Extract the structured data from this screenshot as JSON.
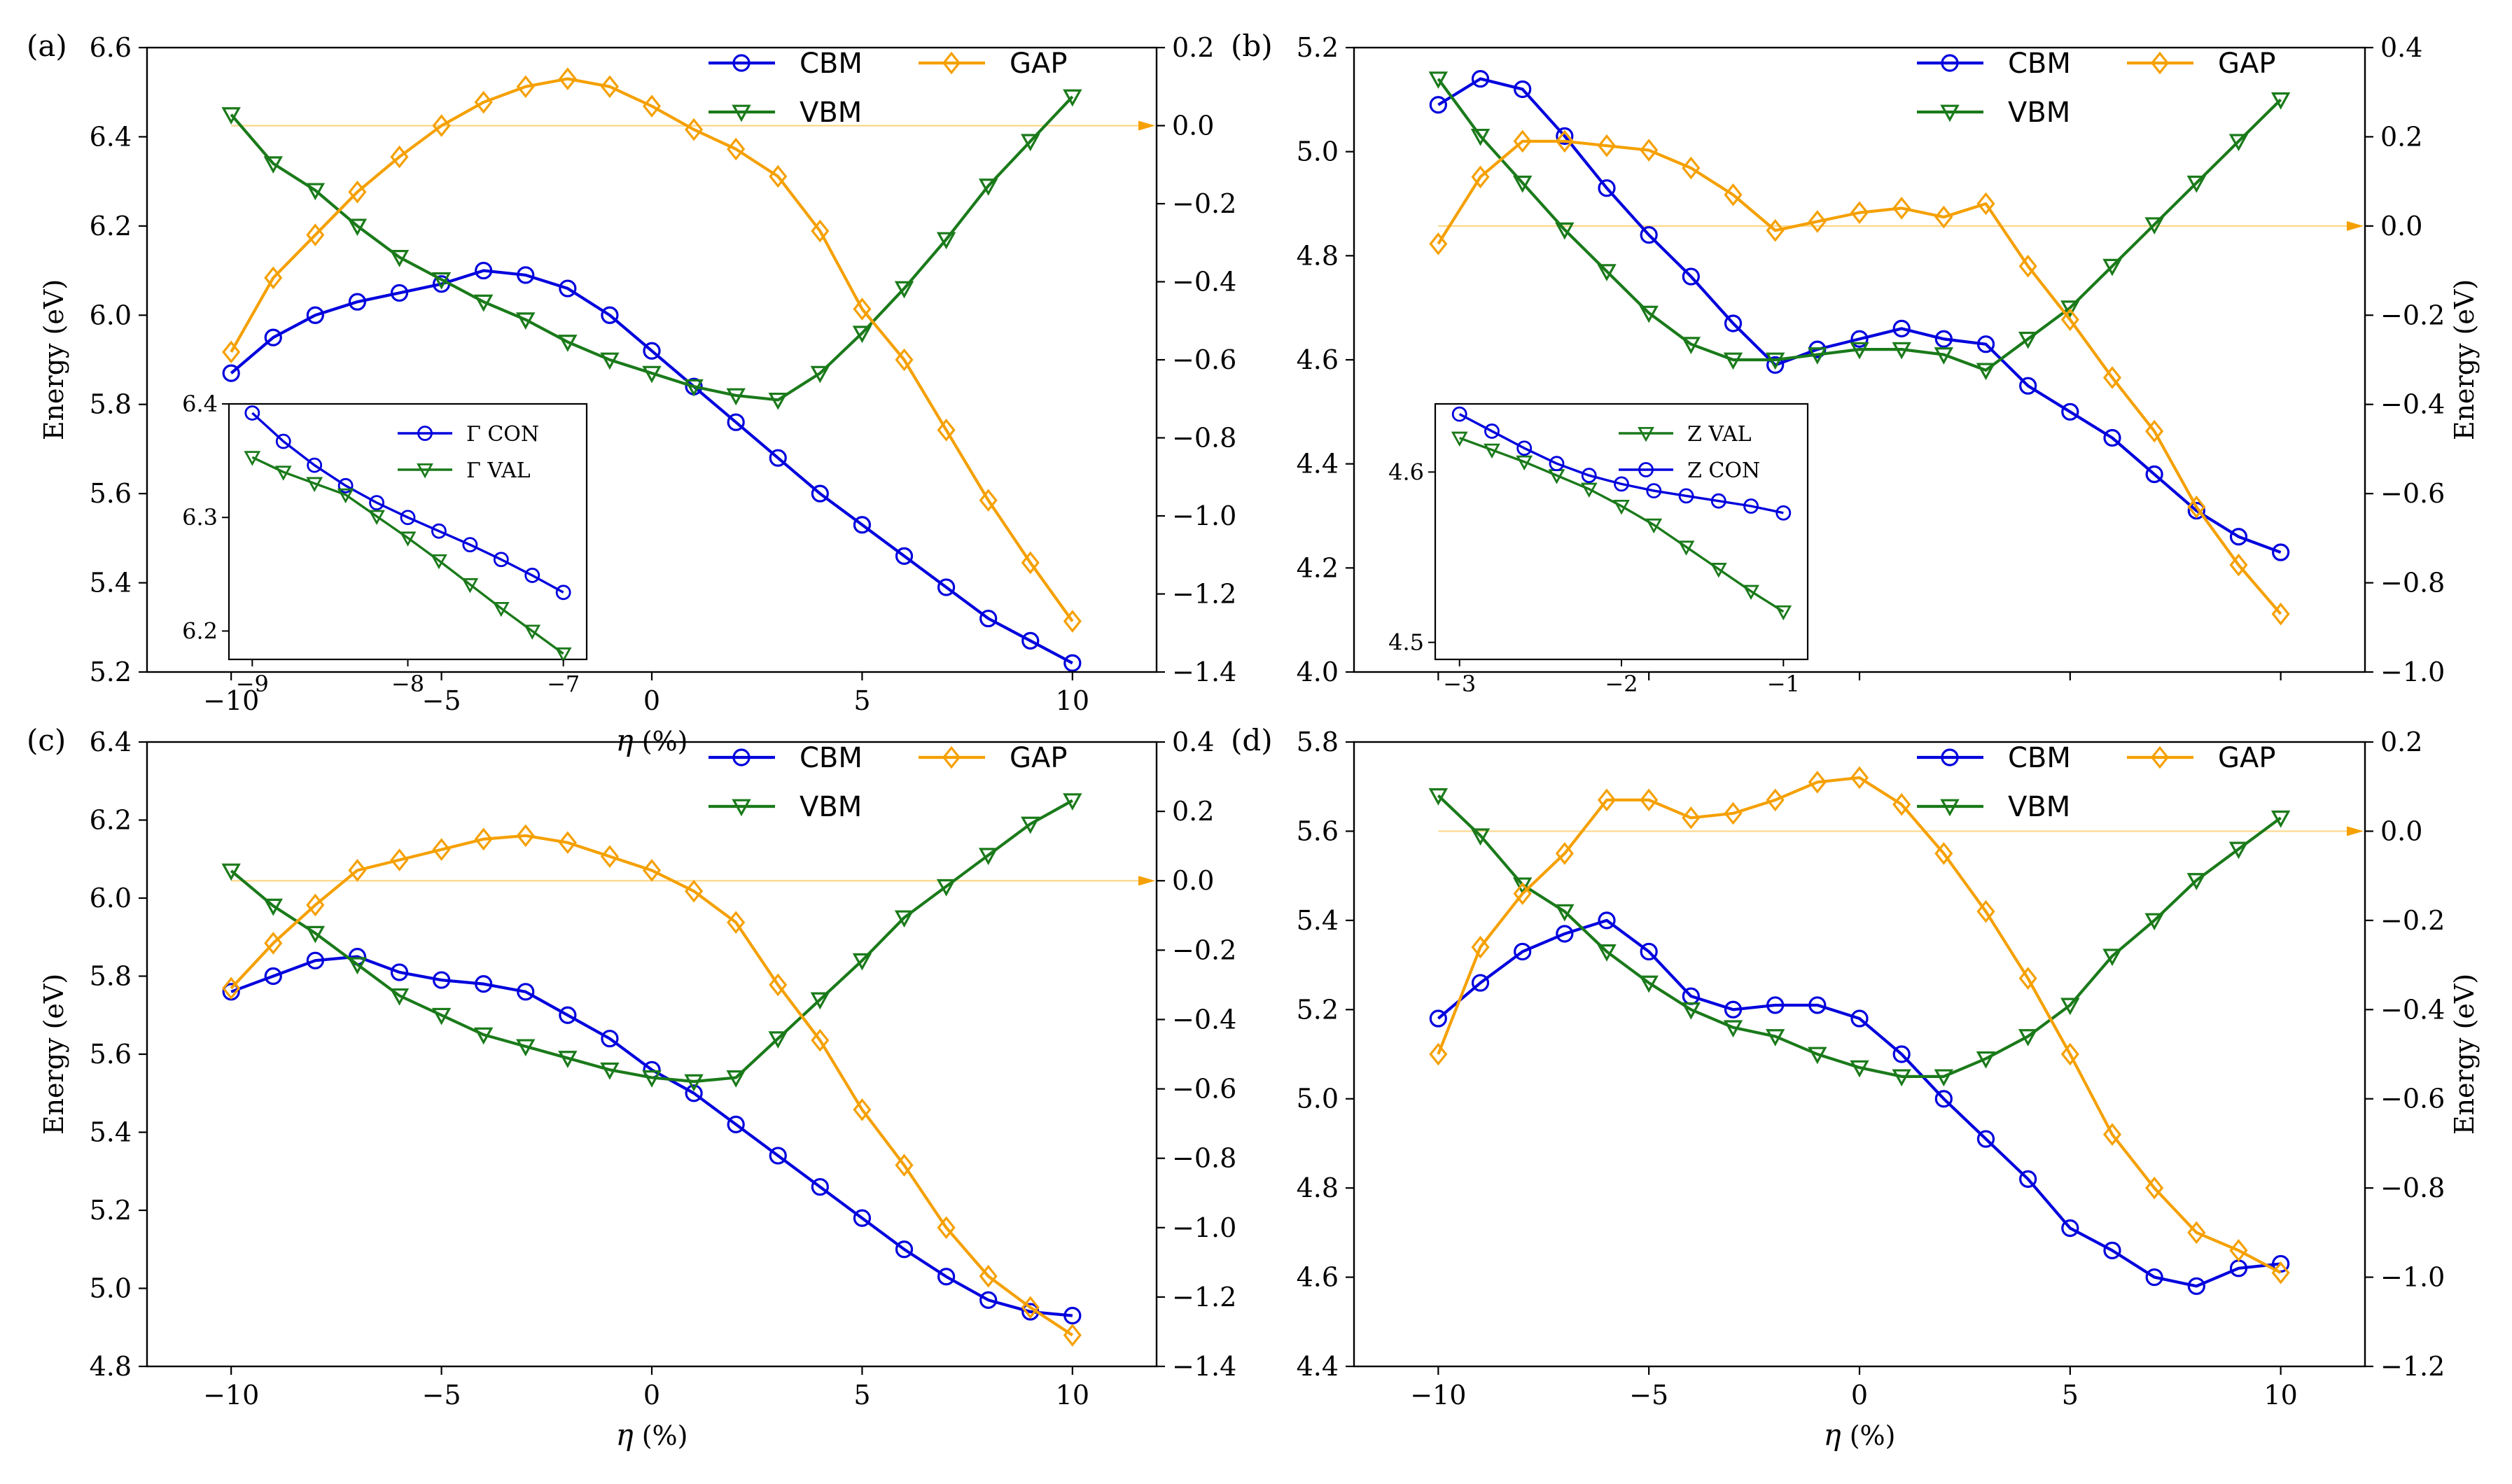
{
  "chart_data": [
    {
      "type": "line",
      "panel_label": "(a)",
      "xlabel_var": "η",
      "xlabel_unit": "(%)",
      "ylabel_left": "Energy (eV)",
      "ylabel_right": "",
      "xlim": [
        -12,
        12
      ],
      "xticks": [
        -10,
        -5,
        0,
        5,
        10
      ],
      "xtick_labels": [
        "−10",
        "−5",
        "0",
        "5",
        "10"
      ],
      "ylim_left": [
        5.2,
        6.6
      ],
      "yticks_left": [
        5.2,
        5.4,
        5.6,
        5.8,
        6.0,
        6.2,
        6.4,
        6.6
      ],
      "ytick_labels_left": [
        "5.2",
        "5.4",
        "5.6",
        "5.8",
        "6.0",
        "6.2",
        "6.4",
        "6.6"
      ],
      "ylim_right": [
        -1.4,
        0.2
      ],
      "yticks_right": [
        -1.4,
        -1.2,
        -1.0,
        -0.8,
        -0.6,
        -0.4,
        -0.2,
        0.0,
        0.2
      ],
      "ytick_labels_right": [
        "−1.4",
        "−1.2",
        "−1.0",
        "−0.8",
        "−0.6",
        "−0.4",
        "−0.2",
        "0.0",
        "0.2"
      ],
      "zero_line_right": 0.0,
      "x": [
        -10,
        -9,
        -8,
        -7,
        -6,
        -5,
        -4,
        -3,
        -2,
        -1,
        0,
        1,
        2,
        3,
        4,
        5,
        6,
        7,
        8,
        9,
        10
      ],
      "series": [
        {
          "name": "CBM",
          "axis": "left",
          "color": "#0000dd",
          "marker": "circle",
          "values": [
            5.87,
            5.95,
            6.0,
            6.03,
            6.05,
            6.07,
            6.1,
            6.09,
            6.06,
            6.0,
            5.92,
            5.84,
            5.76,
            5.68,
            5.6,
            5.53,
            5.46,
            5.39,
            5.32,
            5.27,
            5.22
          ]
        },
        {
          "name": "VBM",
          "axis": "left",
          "color": "#1a7a1a",
          "marker": "triangle-down",
          "values": [
            6.45,
            6.34,
            6.28,
            6.2,
            6.13,
            6.08,
            6.03,
            5.99,
            5.94,
            5.9,
            5.87,
            5.84,
            5.82,
            5.81,
            5.87,
            5.96,
            6.06,
            6.17,
            6.29,
            6.39,
            6.49
          ]
        },
        {
          "name": "GAP",
          "axis": "right",
          "color": "#f5a000",
          "marker": "diamond",
          "values": [
            -0.58,
            -0.39,
            -0.28,
            -0.17,
            -0.08,
            0.0,
            0.06,
            0.1,
            0.12,
            0.1,
            0.05,
            -0.01,
            -0.06,
            -0.13,
            -0.27,
            -0.47,
            -0.6,
            -0.78,
            -0.96,
            -1.12,
            -1.27
          ]
        }
      ],
      "legend_placement": "top-right",
      "inset": {
        "legend_placement": "upper-right",
        "xlim": [
          -9.15,
          -6.85
        ],
        "ylim": [
          6.175,
          6.4
        ],
        "xticks": [
          -9,
          -8,
          -7
        ],
        "xtick_labels": [
          "−9",
          "−8",
          "−7"
        ],
        "yticks": [
          6.2,
          6.3,
          6.4
        ],
        "ytick_labels": [
          "6.2",
          "6.3",
          "6.4"
        ],
        "x": [
          -9.0,
          -8.8,
          -8.6,
          -8.4,
          -8.2,
          -8.0,
          -7.8,
          -7.6,
          -7.4,
          -7.2,
          -7.0
        ],
        "series": [
          {
            "name": "Γ CON",
            "color": "#0000dd",
            "marker": "circle",
            "values": [
              6.392,
              6.367,
              6.346,
              6.328,
              6.313,
              6.3,
              6.288,
              6.276,
              6.263,
              6.249,
              6.234
            ]
          },
          {
            "name": "Γ VAL",
            "color": "#1a7a1a",
            "marker": "triangle-down",
            "values": [
              6.353,
              6.34,
              6.33,
              6.32,
              6.301,
              6.282,
              6.262,
              6.241,
              6.22,
              6.2,
              6.18
            ]
          }
        ]
      }
    },
    {
      "type": "line",
      "panel_label": "(b)",
      "xlabel_var": "",
      "xlabel_unit": "",
      "ylabel_left": "",
      "ylabel_right": "Energy (eV)",
      "xlim": [
        -12,
        12
      ],
      "xticks": [
        -10,
        -5,
        0,
        5,
        10
      ],
      "xtick_labels": [
        "",
        "",
        "",
        "",
        ""
      ],
      "ylim_left": [
        4.0,
        5.2
      ],
      "yticks_left": [
        4.0,
        4.2,
        4.4,
        4.6,
        4.8,
        5.0,
        5.2
      ],
      "ytick_labels_left": [
        "4.0",
        "4.2",
        "4.4",
        "4.6",
        "4.8",
        "5.0",
        "5.2"
      ],
      "ylim_right": [
        -1.0,
        0.4
      ],
      "yticks_right": [
        -1.0,
        -0.8,
        -0.6,
        -0.4,
        -0.2,
        0.0,
        0.2,
        0.4
      ],
      "ytick_labels_right": [
        "−1.0",
        "−0.8",
        "−0.6",
        "−0.4",
        "−0.2",
        "0.0",
        "0.2",
        "0.4"
      ],
      "zero_line_right": 0.0,
      "x": [
        -10,
        -9,
        -8,
        -7,
        -6,
        -5,
        -4,
        -3,
        -2,
        -1,
        0,
        1,
        2,
        3,
        4,
        5,
        6,
        7,
        8,
        9,
        10
      ],
      "series": [
        {
          "name": "CBM",
          "axis": "left",
          "color": "#0000dd",
          "marker": "circle",
          "values": [
            5.09,
            5.14,
            5.12,
            5.03,
            4.93,
            4.84,
            4.76,
            4.67,
            4.59,
            4.62,
            4.64,
            4.66,
            4.64,
            4.63,
            4.55,
            4.5,
            4.45,
            4.38,
            4.31,
            4.26,
            4.23
          ]
        },
        {
          "name": "VBM",
          "axis": "left",
          "color": "#1a7a1a",
          "marker": "triangle-down",
          "values": [
            5.14,
            5.03,
            4.94,
            4.85,
            4.77,
            4.69,
            4.63,
            4.6,
            4.6,
            4.61,
            4.62,
            4.62,
            4.61,
            4.58,
            4.64,
            4.7,
            4.78,
            4.86,
            4.94,
            5.02,
            5.1
          ]
        },
        {
          "name": "GAP",
          "axis": "right",
          "color": "#f5a000",
          "marker": "diamond",
          "values": [
            -0.04,
            0.11,
            0.19,
            0.19,
            0.18,
            0.17,
            0.13,
            0.07,
            -0.01,
            0.01,
            0.03,
            0.04,
            0.02,
            0.05,
            -0.09,
            -0.21,
            -0.34,
            -0.46,
            -0.63,
            -0.76,
            -0.87
          ]
        }
      ],
      "legend_placement": "top-right",
      "inset": {
        "legend_placement": "upper-right",
        "xlim": [
          -3.15,
          -0.85
        ],
        "ylim": [
          4.49,
          4.64
        ],
        "xticks": [
          -3,
          -2,
          -1
        ],
        "xtick_labels": [
          "−3",
          "−2",
          "−1"
        ],
        "yticks": [
          4.5,
          4.6
        ],
        "ytick_labels": [
          "4.5",
          "4.6"
        ],
        "x": [
          -3.0,
          -2.8,
          -2.6,
          -2.4,
          -2.2,
          -2.0,
          -1.8,
          -1.6,
          -1.4,
          -1.2,
          -1.0
        ],
        "series": [
          {
            "name": "Z VAL",
            "color": "#1a7a1a",
            "marker": "triangle-down",
            "values": [
              4.62,
              4.613,
              4.606,
              4.598,
              4.59,
              4.58,
              4.569,
              4.556,
              4.543,
              4.53,
              4.518
            ]
          },
          {
            "name": "Z CON",
            "color": "#0000dd",
            "marker": "circle",
            "values": [
              4.634,
              4.624,
              4.614,
              4.605,
              4.598,
              4.593,
              4.589,
              4.586,
              4.583,
              4.58,
              4.576
            ]
          }
        ]
      }
    },
    {
      "type": "line",
      "panel_label": "(c)",
      "xlabel_var": "η",
      "xlabel_unit": "(%)",
      "ylabel_left": "Energy (eV)",
      "ylabel_right": "",
      "xlim": [
        -12,
        12
      ],
      "xticks": [
        -10,
        -5,
        0,
        5,
        10
      ],
      "xtick_labels": [
        "−10",
        "−5",
        "0",
        "5",
        "10"
      ],
      "ylim_left": [
        4.8,
        6.4
      ],
      "yticks_left": [
        4.8,
        5.0,
        5.2,
        5.4,
        5.6,
        5.8,
        6.0,
        6.2,
        6.4
      ],
      "ytick_labels_left": [
        "4.8",
        "5.0",
        "5.2",
        "5.4",
        "5.6",
        "5.8",
        "6.0",
        "6.2",
        "6.4"
      ],
      "ylim_right": [
        -1.4,
        0.4
      ],
      "yticks_right": [
        -1.4,
        -1.2,
        -1.0,
        -0.8,
        -0.6,
        -0.4,
        -0.2,
        0.0,
        0.2,
        0.4
      ],
      "ytick_labels_right": [
        "−1.4",
        "−1.2",
        "−1.0",
        "−0.8",
        "−0.6",
        "−0.4",
        "−0.2",
        "0.0",
        "0.2",
        "0.4"
      ],
      "zero_line_right": 0.0,
      "x": [
        -10,
        -9,
        -8,
        -7,
        -6,
        -5,
        -4,
        -3,
        -2,
        -1,
        0,
        1,
        2,
        3,
        4,
        5,
        6,
        7,
        8,
        9,
        10
      ],
      "series": [
        {
          "name": "CBM",
          "axis": "left",
          "color": "#0000dd",
          "marker": "circle",
          "values": [
            5.76,
            5.8,
            5.84,
            5.85,
            5.81,
            5.79,
            5.78,
            5.76,
            5.7,
            5.64,
            5.56,
            5.5,
            5.42,
            5.34,
            5.26,
            5.18,
            5.1,
            5.03,
            4.97,
            4.94,
            4.93
          ]
        },
        {
          "name": "VBM",
          "axis": "left",
          "color": "#1a7a1a",
          "marker": "triangle-down",
          "values": [
            6.07,
            5.98,
            5.91,
            5.83,
            5.75,
            5.7,
            5.65,
            5.62,
            5.59,
            5.56,
            5.54,
            5.53,
            5.54,
            5.64,
            5.74,
            5.84,
            5.95,
            6.03,
            6.11,
            6.19,
            6.25
          ]
        },
        {
          "name": "GAP",
          "axis": "right",
          "color": "#f5a000",
          "marker": "diamond",
          "values": [
            -0.31,
            -0.18,
            -0.07,
            0.03,
            0.06,
            0.09,
            0.12,
            0.13,
            0.11,
            0.07,
            0.03,
            -0.03,
            -0.12,
            -0.3,
            -0.46,
            -0.66,
            -0.82,
            -1.0,
            -1.14,
            -1.23,
            -1.31
          ]
        }
      ],
      "legend_placement": "top-right"
    },
    {
      "type": "line",
      "panel_label": "(d)",
      "xlabel_var": "η",
      "xlabel_unit": "(%)",
      "ylabel_left": "",
      "ylabel_right": "Energy (eV)",
      "xlim": [
        -12,
        12
      ],
      "xticks": [
        -10,
        -5,
        0,
        5,
        10
      ],
      "xtick_labels": [
        "−10",
        "−5",
        "0",
        "5",
        "10"
      ],
      "ylim_left": [
        4.4,
        5.8
      ],
      "yticks_left": [
        4.4,
        4.6,
        4.8,
        5.0,
        5.2,
        5.4,
        5.6,
        5.8
      ],
      "ytick_labels_left": [
        "4.4",
        "4.6",
        "4.8",
        "5.0",
        "5.2",
        "5.4",
        "5.6",
        "5.8"
      ],
      "ylim_right": [
        -1.2,
        0.2
      ],
      "yticks_right": [
        -1.2,
        -1.0,
        -0.8,
        -0.6,
        -0.4,
        -0.2,
        0.0,
        0.2
      ],
      "ytick_labels_right": [
        "−1.2",
        "−1.0",
        "−0.8",
        "−0.6",
        "−0.4",
        "−0.2",
        "0.0",
        "0.2"
      ],
      "zero_line_right": 0.0,
      "x": [
        -10,
        -9,
        -8,
        -7,
        -6,
        -5,
        -4,
        -3,
        -2,
        -1,
        0,
        1,
        2,
        3,
        4,
        5,
        6,
        7,
        8,
        9,
        10
      ],
      "series": [
        {
          "name": "CBM",
          "axis": "left",
          "color": "#0000dd",
          "marker": "circle",
          "values": [
            5.18,
            5.26,
            5.33,
            5.37,
            5.4,
            5.33,
            5.23,
            5.2,
            5.21,
            5.21,
            5.18,
            5.1,
            5.0,
            4.91,
            4.82,
            4.71,
            4.66,
            4.6,
            4.58,
            4.62,
            4.63
          ]
        },
        {
          "name": "VBM",
          "axis": "left",
          "color": "#1a7a1a",
          "marker": "triangle-down",
          "values": [
            5.68,
            5.59,
            5.48,
            5.42,
            5.33,
            5.26,
            5.2,
            5.16,
            5.14,
            5.1,
            5.07,
            5.05,
            5.05,
            5.09,
            5.14,
            5.21,
            5.32,
            5.4,
            5.49,
            5.56,
            5.63
          ]
        },
        {
          "name": "GAP",
          "axis": "right",
          "color": "#f5a000",
          "marker": "diamond",
          "values": [
            -0.5,
            -0.26,
            -0.14,
            -0.05,
            0.07,
            0.07,
            0.03,
            0.04,
            0.07,
            0.11,
            0.12,
            0.06,
            -0.05,
            -0.18,
            -0.33,
            -0.5,
            -0.68,
            -0.8,
            -0.9,
            -0.94,
            -0.99
          ]
        }
      ],
      "legend_placement": "top-right"
    }
  ]
}
